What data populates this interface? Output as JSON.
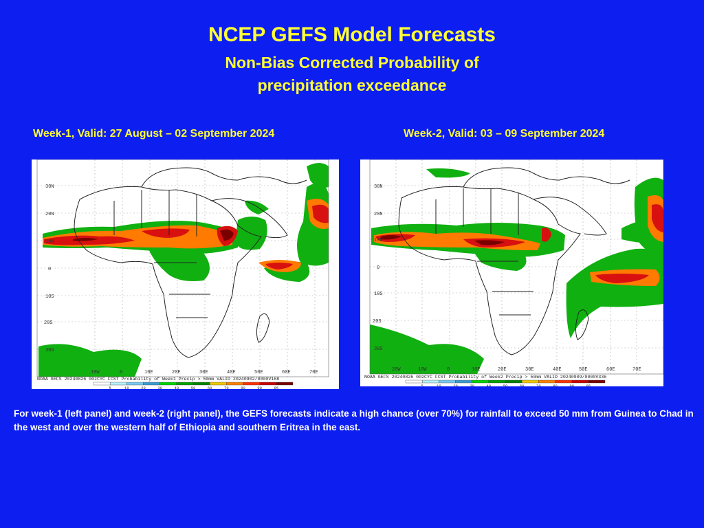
{
  "title": {
    "main": "NCEP GEFS Model Forecasts",
    "sub_line1": "Non-Bias Corrected Probability of",
    "sub_line2": "precipitation exceedance"
  },
  "panels": [
    {
      "heading": "Week-1, Valid: 27 August – 02 September  2024",
      "footer": "NOAA GEFS 20240826 00zCYC FCST Probability of Week1 Precip > 50mm  VALID 20240902/0000V168",
      "lat_labels": [
        "30N",
        "20N",
        "10N",
        "0",
        "10S",
        "20S",
        "30S"
      ],
      "lon_labels": [
        "10W",
        "0",
        "10E",
        "20E",
        "30E",
        "40E",
        "50E",
        "60E",
        "70E"
      ]
    },
    {
      "heading": "Week-2, Valid: 03  – 09 September 2024",
      "footer": "NOAA GEFS 20240826 00zCYC FCST Probability of Week2 Precip > 50mm  VALID 20240909/0000V336",
      "lat_labels": [
        "30N",
        "20N",
        "10N",
        "0",
        "10S",
        "20S",
        "30S"
      ],
      "lon_labels": [
        "20W",
        "10W",
        "0",
        "10E",
        "20E",
        "30E",
        "40E",
        "50E",
        "60E",
        "70E"
      ]
    }
  ],
  "colorbar": {
    "ticks": [
      "5",
      "10",
      "20",
      "30",
      "40",
      "50",
      "60",
      "70",
      "80",
      "90",
      "95"
    ],
    "colors": [
      "#ffffff",
      "#b4f0fa",
      "#78c8f0",
      "#3c9bd2",
      "#00d200",
      "#00a000",
      "#008200",
      "#f0c800",
      "#ff8200",
      "#ff3200",
      "#c80000",
      "#780000"
    ]
  },
  "caption": "For week-1 (left panel) and week-2 (right panel), the GEFS forecasts indicate a high chance (over 70%) for rainfall to exceed 50 mm from Guinea to Chad in the west and over the western half of Ethiopia and southern Eritrea in the east."
}
